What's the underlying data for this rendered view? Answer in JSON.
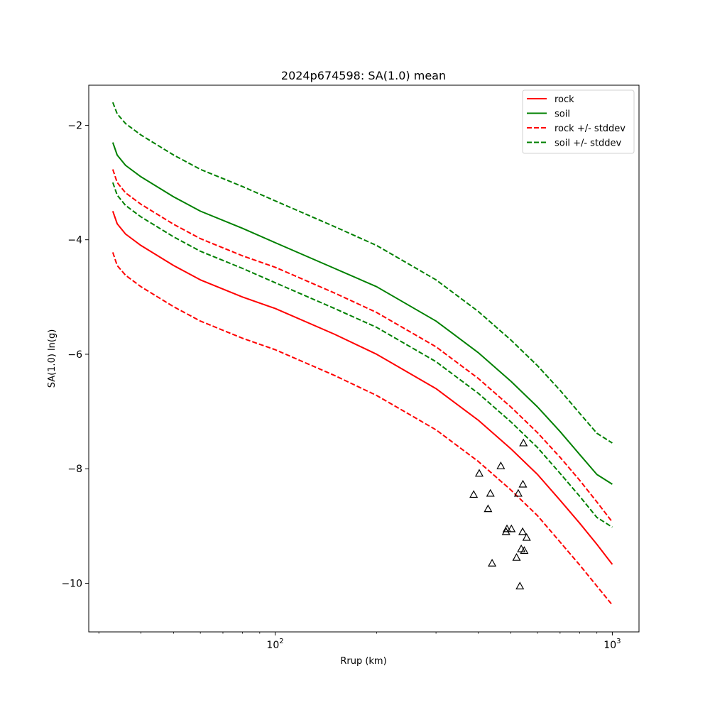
{
  "chart_data": {
    "type": "line",
    "title": "2024p674598: SA(1.0) mean",
    "xlabel": "Rrup (km)",
    "ylabel": "SA(1.0) ln(g)",
    "xscale": "log",
    "xlim": [
      28,
      1200
    ],
    "ylim": [
      -10.85,
      -1.3
    ],
    "x_tick_labels": [
      {
        "value": 100,
        "base": "10",
        "exp": "2"
      },
      {
        "value": 1000,
        "base": "10",
        "exp": "3"
      }
    ],
    "y_ticks": [
      -2,
      -4,
      -6,
      -8,
      -10
    ],
    "y_tick_labels": [
      "−2",
      "−4",
      "−6",
      "−8",
      "−10"
    ],
    "grid": false,
    "legend_position": "top-right",
    "series": [
      {
        "name": "rock",
        "color": "#ff0000",
        "style": "solid",
        "x": [
          33,
          34,
          36,
          40,
          50,
          60,
          80,
          100,
          150,
          200,
          300,
          400,
          500,
          600,
          700,
          800,
          900,
          1000
        ],
        "y": [
          -3.5,
          -3.72,
          -3.9,
          -4.1,
          -4.45,
          -4.7,
          -5.0,
          -5.2,
          -5.65,
          -6.0,
          -6.6,
          -7.15,
          -7.65,
          -8.1,
          -8.55,
          -8.95,
          -9.32,
          -9.67
        ]
      },
      {
        "name": "soil",
        "color": "#008000",
        "style": "solid",
        "x": [
          33,
          34,
          36,
          40,
          50,
          60,
          80,
          100,
          150,
          200,
          300,
          400,
          500,
          600,
          700,
          800,
          900,
          1000
        ],
        "y": [
          -2.3,
          -2.52,
          -2.7,
          -2.9,
          -3.25,
          -3.5,
          -3.8,
          -4.05,
          -4.5,
          -4.82,
          -5.42,
          -5.97,
          -6.47,
          -6.92,
          -7.35,
          -7.75,
          -8.1,
          -8.27
        ]
      },
      {
        "name": "rock +/- stddev",
        "color": "#ff0000",
        "style": "dashed",
        "x": [
          33,
          34,
          36,
          40,
          50,
          60,
          80,
          100,
          150,
          200,
          300,
          400,
          500,
          600,
          700,
          800,
          900,
          1000
        ],
        "y": [
          -2.77,
          -3.0,
          -3.18,
          -3.38,
          -3.73,
          -3.98,
          -4.28,
          -4.48,
          -4.93,
          -5.27,
          -5.87,
          -6.42,
          -6.92,
          -7.37,
          -7.8,
          -8.2,
          -8.58,
          -8.93
        ]
      },
      {
        "color": "#ff0000",
        "style": "dashed",
        "x": [
          33,
          34,
          36,
          40,
          50,
          60,
          80,
          100,
          150,
          200,
          300,
          400,
          500,
          600,
          700,
          800,
          900,
          1000
        ],
        "y": [
          -4.22,
          -4.45,
          -4.62,
          -4.82,
          -5.17,
          -5.42,
          -5.72,
          -5.92,
          -6.37,
          -6.72,
          -7.32,
          -7.87,
          -8.37,
          -8.82,
          -9.28,
          -9.68,
          -10.05,
          -10.38
        ]
      },
      {
        "name": "soil +/- stddev",
        "color": "#008000",
        "style": "dashed",
        "x": [
          33,
          34,
          36,
          40,
          50,
          60,
          80,
          100,
          150,
          200,
          300,
          400,
          500,
          600,
          700,
          800,
          900,
          1000
        ],
        "y": [
          -1.6,
          -1.8,
          -1.97,
          -2.17,
          -2.52,
          -2.77,
          -3.07,
          -3.32,
          -3.77,
          -4.1,
          -4.7,
          -5.25,
          -5.75,
          -6.2,
          -6.63,
          -7.03,
          -7.38,
          -7.55
        ]
      },
      {
        "color": "#008000",
        "style": "dashed",
        "x": [
          33,
          34,
          36,
          40,
          50,
          60,
          80,
          100,
          150,
          200,
          300,
          400,
          500,
          600,
          700,
          800,
          900,
          1000
        ],
        "y": [
          -3.0,
          -3.22,
          -3.4,
          -3.6,
          -3.95,
          -4.2,
          -4.5,
          -4.75,
          -5.2,
          -5.53,
          -6.13,
          -6.68,
          -7.18,
          -7.63,
          -8.08,
          -8.48,
          -8.85,
          -9.02
        ]
      }
    ],
    "observations": {
      "marker": "triangle",
      "color": "#000000",
      "points": [
        {
          "x": 545,
          "y": -7.55
        },
        {
          "x": 467,
          "y": -7.95
        },
        {
          "x": 403,
          "y": -8.08
        },
        {
          "x": 543,
          "y": -8.27
        },
        {
          "x": 388,
          "y": -8.45
        },
        {
          "x": 435,
          "y": -8.43
        },
        {
          "x": 526,
          "y": -8.43
        },
        {
          "x": 428,
          "y": -8.7
        },
        {
          "x": 487,
          "y": -9.05
        },
        {
          "x": 502,
          "y": -9.05
        },
        {
          "x": 484,
          "y": -9.1
        },
        {
          "x": 542,
          "y": -9.1
        },
        {
          "x": 557,
          "y": -9.2
        },
        {
          "x": 537,
          "y": -9.4
        },
        {
          "x": 548,
          "y": -9.43
        },
        {
          "x": 520,
          "y": -9.55
        },
        {
          "x": 440,
          "y": -9.65
        },
        {
          "x": 532,
          "y": -10.05
        }
      ]
    }
  }
}
